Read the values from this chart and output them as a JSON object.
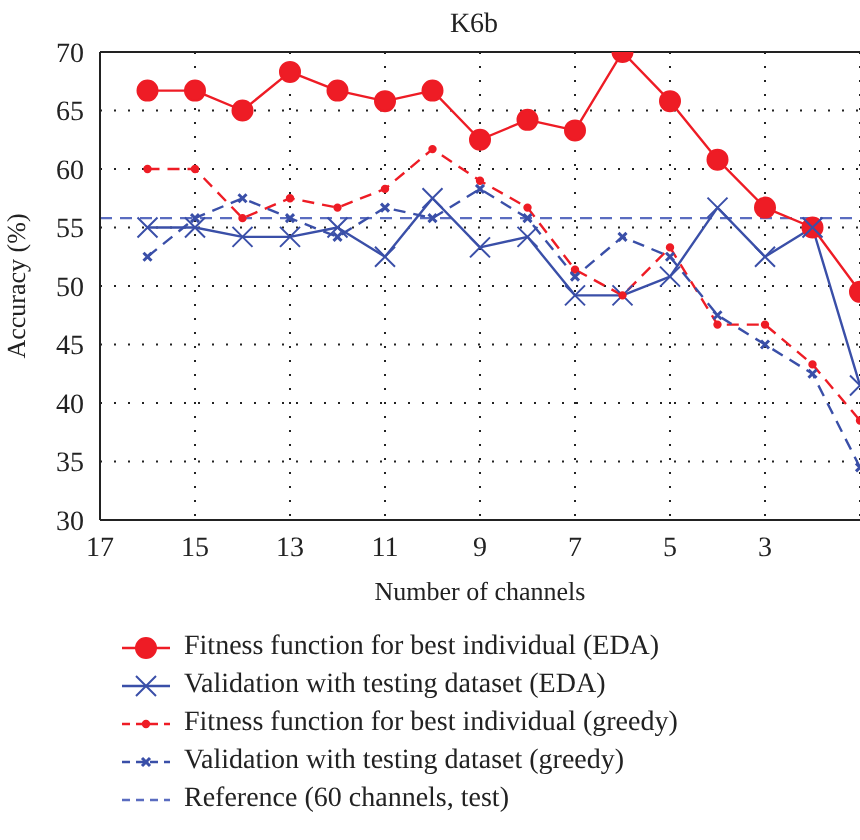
{
  "chart_data": {
    "type": "line",
    "title": "K6b",
    "xlabel": "Number of channels",
    "ylabel": "Accuracy (%)",
    "x": [
      16,
      15,
      14,
      13,
      12,
      11,
      10,
      9,
      8,
      7,
      6,
      5,
      4,
      3,
      2,
      1
    ],
    "series": [
      {
        "name": "Fitness function for best individual (EDA)",
        "color": "#ee1c25",
        "marker": "circle",
        "line_style": "solid",
        "values": [
          66.7,
          66.7,
          65,
          68.3,
          66.7,
          65.8,
          66.7,
          62.5,
          64.2,
          63.3,
          70,
          65.8,
          60.8,
          56.7,
          55,
          49.5
        ]
      },
      {
        "name": "Validation with testing dataset (EDA)",
        "color": "#3a4fa8",
        "marker": "cross",
        "line_style": "solid",
        "values": [
          55,
          55,
          54.2,
          54.2,
          55,
          52.5,
          57.5,
          53.3,
          54.2,
          49.2,
          49.2,
          50.8,
          56.7,
          52.5,
          55,
          41.5
        ]
      },
      {
        "name": "Fitness function for best individual (greedy)",
        "color": "#ee1c25",
        "marker": "circle",
        "line_style": "dashed",
        "values": [
          60,
          60,
          55.8,
          57.5,
          56.7,
          58.3,
          61.7,
          59,
          56.7,
          51.4,
          49.2,
          53.3,
          46.7,
          46.7,
          43.3,
          38.5
        ]
      },
      {
        "name": "Validation with testing dataset (greedy)",
        "color": "#3a4fa8",
        "marker": "cross",
        "line_style": "dashed",
        "values": [
          52.5,
          55.8,
          57.5,
          55.8,
          54.2,
          56.7,
          55.8,
          58.3,
          55.8,
          50.8,
          54.2,
          52.5,
          47.5,
          45,
          42.5,
          34.5
        ]
      }
    ],
    "ref_lines": [
      {
        "axis": "y",
        "value": 55.8,
        "label": "Reference (60 channels, test)",
        "color": "#5a6cc0",
        "line_style": "dashed"
      }
    ],
    "xlim": [
      17,
      1
    ],
    "xticks": [
      17,
      15,
      13,
      11,
      9,
      7,
      5,
      3
    ],
    "ylim": [
      30,
      70
    ],
    "yticks": [
      30,
      35,
      40,
      45,
      50,
      55,
      60,
      65,
      70
    ],
    "grid": true,
    "legend": "bottom"
  }
}
